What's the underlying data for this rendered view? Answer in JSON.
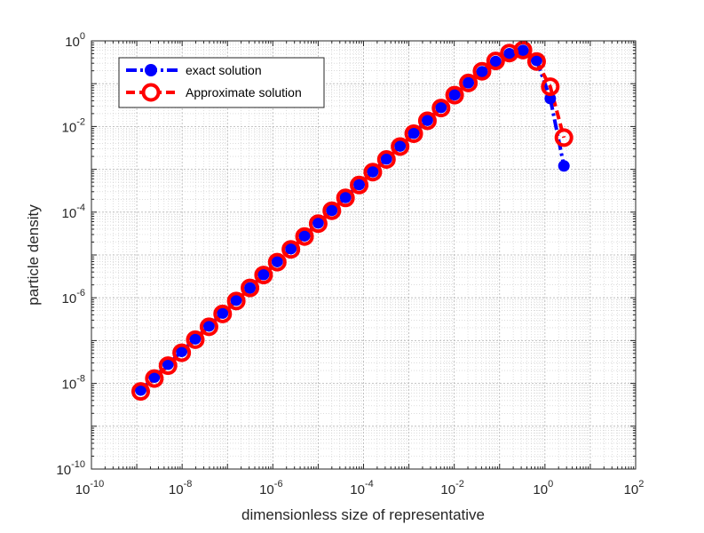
{
  "chart_data": {
    "type": "line",
    "title": "",
    "xlabel": "dimensionless size of representative",
    "ylabel": "particle density",
    "xscale": "log",
    "yscale": "log",
    "xlim": [
      1e-10,
      100
    ],
    "ylim": [
      1e-10,
      1
    ],
    "grid": true,
    "minor_grid": true,
    "legend_location": "top-left",
    "x_ticks": [
      {
        "base": "10",
        "exp": "-10",
        "value": 1e-10
      },
      {
        "base": "10",
        "exp": "-8",
        "value": 1e-08
      },
      {
        "base": "10",
        "exp": "-6",
        "value": 1e-06
      },
      {
        "base": "10",
        "exp": "-4",
        "value": 0.0001
      },
      {
        "base": "10",
        "exp": "-2",
        "value": 0.01
      },
      {
        "base": "10",
        "exp": "0",
        "value": 1
      },
      {
        "base": "10",
        "exp": "2",
        "value": 100
      }
    ],
    "y_ticks": [
      {
        "base": "10",
        "exp": "-10",
        "value": 1e-10
      },
      {
        "base": "10",
        "exp": "-8",
        "value": 1e-08
      },
      {
        "base": "10",
        "exp": "-6",
        "value": 1e-06
      },
      {
        "base": "10",
        "exp": "-4",
        "value": 0.0001
      },
      {
        "base": "10",
        "exp": "-2",
        "value": 0.01
      },
      {
        "base": "10",
        "exp": "0",
        "value": 1
      }
    ],
    "x": [
      1.22e-09,
      2.44e-09,
      4.88e-09,
      9.77e-09,
      1.95e-08,
      3.91e-08,
      7.81e-08,
      1.56e-07,
      3.13e-07,
      6.25e-07,
      1.25e-06,
      2.5e-06,
      5e-06,
      1e-05,
      2e-05,
      4e-05,
      8e-05,
      0.00016,
      0.00032,
      0.00064,
      0.00128,
      0.00256,
      0.00512,
      0.0102,
      0.0205,
      0.041,
      0.0819,
      0.164,
      0.328,
      0.655,
      1.31,
      2.62
    ],
    "series": [
      {
        "name": "exact solution",
        "color": "#0000ff",
        "line_style": "dash-dot",
        "marker": "filled-circle",
        "values": [
          7e-09,
          1.4e-08,
          2.8e-08,
          5.6e-08,
          1.1e-07,
          2.2e-07,
          4.4e-07,
          8.8e-07,
          1.7e-06,
          3.5e-06,
          7e-06,
          1.4e-05,
          2.8e-05,
          5.6e-05,
          0.00011,
          0.00022,
          0.00044,
          0.00088,
          0.00175,
          0.0035,
          0.007,
          0.014,
          0.028,
          0.055,
          0.105,
          0.19,
          0.33,
          0.5,
          0.6,
          0.35,
          0.045,
          0.0012
        ]
      },
      {
        "name": "Approximate solution",
        "color": "#ff0000",
        "line_style": "dashed",
        "marker": "open-circle",
        "values": [
          6.5e-09,
          1.3e-08,
          2.6e-08,
          5.2e-08,
          1.05e-07,
          2.1e-07,
          4.2e-07,
          8.4e-07,
          1.7e-06,
          3.4e-06,
          6.8e-06,
          1.35e-05,
          2.7e-05,
          5.4e-05,
          0.000108,
          0.000215,
          0.00043,
          0.00086,
          0.0017,
          0.0034,
          0.0068,
          0.0136,
          0.027,
          0.054,
          0.104,
          0.195,
          0.34,
          0.52,
          0.61,
          0.33,
          0.085,
          0.0055
        ]
      }
    ]
  }
}
